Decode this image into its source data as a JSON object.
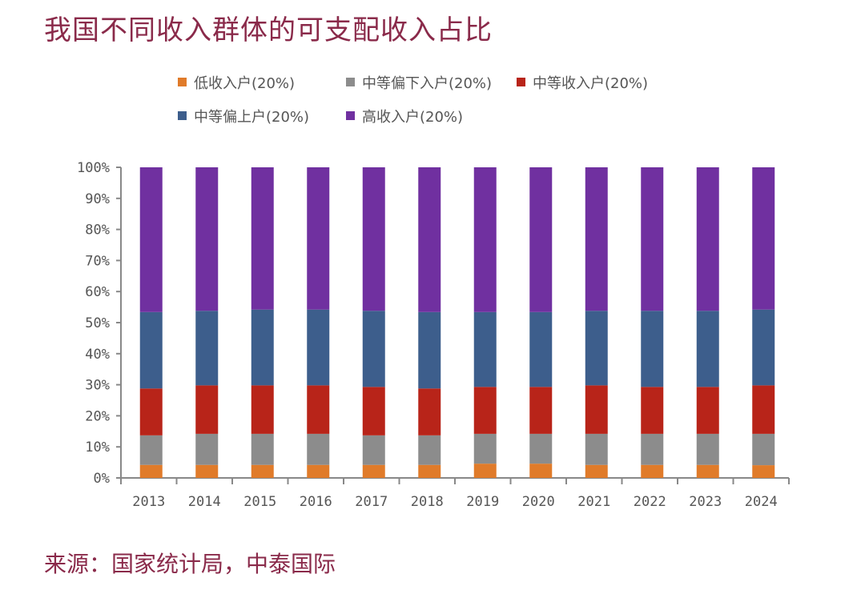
{
  "chart_data": {
    "type": "bar",
    "stacked": true,
    "title": "我国不同收入群体的可支配收入占比",
    "source": "来源：国家统计局，中泰国际",
    "categories": [
      "2013",
      "2014",
      "2015",
      "2016",
      "2017",
      "2018",
      "2019",
      "2020",
      "2021",
      "2022",
      "2023",
      "2024"
    ],
    "series": [
      {
        "name": "低收入户(20%)",
        "color": "#e07b2a",
        "values": [
          4.2,
          4.2,
          4.2,
          4.2,
          4.2,
          4.2,
          4.6,
          4.6,
          4.2,
          4.2,
          4.2,
          4.1
        ]
      },
      {
        "name": "中等偏下入户(20%)",
        "color": "#8c8c8c",
        "values": [
          9.5,
          10.0,
          10.0,
          10.0,
          9.5,
          9.5,
          9.6,
          9.6,
          10.0,
          10.0,
          10.0,
          10.1
        ]
      },
      {
        "name": "中等收入户(20%)",
        "color": "#b82419",
        "values": [
          15.1,
          15.6,
          15.6,
          15.6,
          15.6,
          15.1,
          15.1,
          15.1,
          15.6,
          15.1,
          15.1,
          15.6
        ]
      },
      {
        "name": "中等偏上户(20%)",
        "color": "#3d5e8c",
        "values": [
          24.6,
          24.0,
          24.4,
          24.4,
          24.5,
          24.6,
          24.1,
          24.1,
          24.0,
          24.5,
          24.5,
          24.4
        ]
      },
      {
        "name": "高收入户(20%)",
        "color": "#7030a0",
        "values": [
          46.6,
          46.2,
          45.8,
          45.8,
          46.2,
          46.6,
          46.6,
          46.6,
          46.2,
          46.2,
          46.2,
          45.8
        ]
      }
    ],
    "ylim": [
      0,
      100
    ],
    "yticks": [
      "0%",
      "10%",
      "20%",
      "30%",
      "40%",
      "50%",
      "60%",
      "70%",
      "80%",
      "90%",
      "100%"
    ],
    "grid": false,
    "legend": "top"
  }
}
